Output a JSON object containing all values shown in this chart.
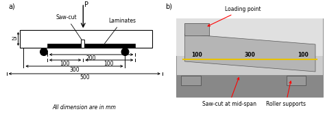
{
  "fig_width": 4.74,
  "fig_height": 1.7,
  "dpi": 100,
  "bg_color": "#ffffff",
  "label_a": "a)",
  "label_b": "b)",
  "P_label": "P",
  "saw_cut_label": "Saw-cut",
  "laminates_label": "Laminates",
  "loading_point_label": "Loading point",
  "saw_cut_mid_label": "Saw-cut at mid-span",
  "roller_supports_label": "Roller supports",
  "dim_note": "All dimension are in mm",
  "dim_200": "200",
  "dim_100_left": "100",
  "dim_100_right": "100",
  "dim_300": "300",
  "dim_500": "500",
  "dim_25": "25",
  "photo_colors": {
    "bg_top": "#d8d8d8",
    "beam": "#b8b8b8",
    "beam_dark": "#888888",
    "roller": "#aaaaaa",
    "yellow_line": "#e8c200"
  }
}
